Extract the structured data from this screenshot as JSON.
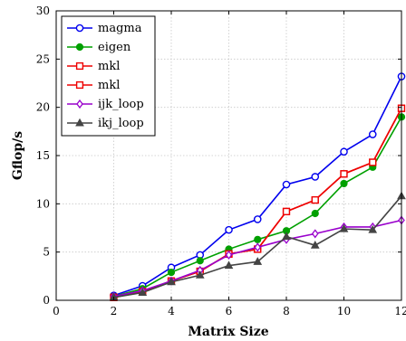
{
  "chart_data": {
    "type": "line",
    "xlabel": "Matrix Size",
    "ylabel": "Gflop/s",
    "xlim": [
      0,
      12
    ],
    "ylim": [
      0,
      30
    ],
    "xticks": [
      0,
      2,
      4,
      6,
      8,
      10,
      12
    ],
    "yticks": [
      0,
      5,
      10,
      15,
      20,
      25,
      30
    ],
    "grid": true,
    "legend_position": "top-left",
    "x": [
      2,
      3,
      4,
      5,
      6,
      7,
      8,
      9,
      10,
      11,
      12
    ],
    "series": [
      {
        "name": "magma",
        "color": "#0000ee",
        "marker": "circle-open",
        "values": [
          0.5,
          1.5,
          3.4,
          4.7,
          7.3,
          8.4,
          12.0,
          12.8,
          15.4,
          17.2,
          23.2
        ]
      },
      {
        "name": "eigen",
        "color": "#00a000",
        "marker": "circle-filled",
        "values": [
          0.4,
          1.2,
          2.9,
          4.1,
          5.3,
          6.3,
          7.2,
          9.0,
          12.1,
          13.8,
          19.0
        ]
      },
      {
        "name": "mkl",
        "color": "#ee0000",
        "marker": "square-open",
        "values": [
          0.3,
          0.9,
          2.0,
          3.0,
          4.8,
          5.3,
          9.2,
          10.4,
          13.1,
          14.3,
          19.9
        ]
      },
      {
        "name": "mkl",
        "color": "#ee0000",
        "marker": "square-open",
        "values": [
          0.3,
          0.9,
          2.0,
          3.0,
          4.8,
          5.3,
          9.2,
          10.4,
          13.1,
          14.3,
          19.9
        ]
      },
      {
        "name": "ijk_loop",
        "color": "#9900cc",
        "marker": "diamond",
        "values": [
          0.4,
          1.0,
          2.0,
          3.1,
          4.7,
          5.5,
          6.3,
          6.9,
          7.6,
          7.6,
          8.3
        ]
      },
      {
        "name": "ikj_loop",
        "color": "#444444",
        "marker": "triangle",
        "values": [
          0.3,
          0.8,
          1.9,
          2.6,
          3.6,
          4.0,
          6.6,
          5.7,
          7.4,
          7.3,
          10.8
        ]
      }
    ]
  }
}
